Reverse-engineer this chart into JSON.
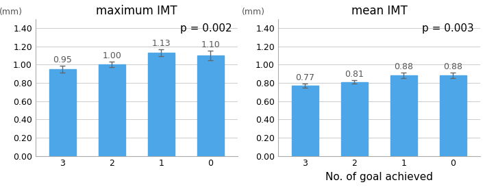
{
  "left": {
    "title": "maximum IMT",
    "ylabel": "(mm)",
    "categories": [
      "3",
      "2",
      "1",
      "0"
    ],
    "values": [
      0.95,
      1.0,
      1.13,
      1.1
    ],
    "errors": [
      0.04,
      0.03,
      0.04,
      0.05
    ],
    "pvalue": "p = 0.002",
    "ylim": [
      0,
      1.5
    ],
    "yticks": [
      0.0,
      0.2,
      0.4,
      0.6,
      0.8,
      1.0,
      1.2,
      1.4
    ]
  },
  "right": {
    "title": "mean IMT",
    "ylabel": "(mm)",
    "xlabel": "No. of goal achieved",
    "categories": [
      "3",
      "2",
      "1",
      "0"
    ],
    "values": [
      0.77,
      0.81,
      0.88,
      0.88
    ],
    "errors": [
      0.02,
      0.02,
      0.03,
      0.03
    ],
    "pvalue": "p = 0.003",
    "ylim": [
      0,
      1.5
    ],
    "yticks": [
      0.0,
      0.2,
      0.4,
      0.6,
      0.8,
      1.0,
      1.2,
      1.4
    ]
  },
  "bar_color": "#4DA6E8",
  "error_color": "#666666",
  "bg_color": "#ffffff",
  "title_fontsize": 12,
  "label_fontsize": 9,
  "tick_fontsize": 9,
  "pvalue_fontsize": 11,
  "value_label_fontsize": 9
}
